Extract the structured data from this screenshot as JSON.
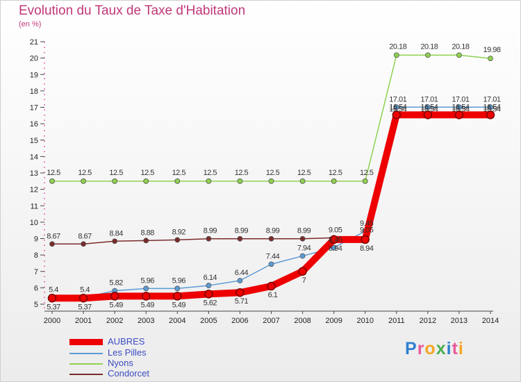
{
  "title": "Evolution du Taux de Taxe d'Habitation",
  "unit": "(en %)",
  "logo": "Proxiti",
  "chart_data": {
    "type": "line",
    "x": [
      "2000",
      "2001",
      "2002",
      "2003",
      "2004",
      "2005",
      "2006",
      "2007",
      "2008",
      "2009",
      "2010",
      "2011",
      "2012",
      "2013",
      "2014"
    ],
    "yticks": [
      "5",
      "6",
      "7",
      "8",
      "9",
      "10",
      "11",
      "12",
      "13",
      "14",
      "15",
      "16",
      "17",
      "18",
      "19",
      "20",
      "21"
    ],
    "ylim": [
      5,
      21
    ],
    "grid": false,
    "legend_position": "bottom-left",
    "series": [
      {
        "name": "AUBRES",
        "color": "#ee0000",
        "values": [
          5.37,
          5.37,
          5.49,
          5.49,
          5.49,
          5.62,
          5.71,
          6.1,
          7,
          8.94,
          8.94,
          16.54,
          16.54,
          16.54,
          16.54
        ],
        "labels": [
          "5.37",
          "5.37",
          "5.49",
          "5.49",
          "5.49",
          "5.62",
          "5.71",
          "6.1",
          "7",
          "8.94",
          "8.94",
          "16.54",
          "16.54",
          "16.54",
          "16.54"
        ]
      },
      {
        "name": "Les Pilles",
        "color": "#5b9bd5",
        "values": [
          5.4,
          5.4,
          5.82,
          5.96,
          5.96,
          6.14,
          6.44,
          7.44,
          7.94,
          8.45,
          9.45,
          17.01,
          17.01,
          17.01,
          17.01
        ],
        "labels": [
          "5.4",
          "5.4",
          "5.82",
          "5.96",
          "5.96",
          "6.14",
          "6.44",
          "7.44",
          "7.94",
          "8.45",
          "9.45",
          "17.01",
          "17.01",
          "17.01",
          "17.01"
        ]
      },
      {
        "name": "Nyons",
        "color": "#8fd14f",
        "values": [
          12.5,
          12.5,
          12.5,
          12.5,
          12.5,
          12.5,
          12.5,
          12.5,
          12.5,
          12.5,
          12.5,
          20.18,
          20.18,
          20.18,
          19.98
        ],
        "labels": [
          "12.5",
          "12.5",
          "12.5",
          "12.5",
          "12.5",
          "12.5",
          "12.5",
          "12.5",
          "12.5",
          "12.5",
          "12.5",
          "20.18",
          "20.18",
          "20.18",
          "19.98"
        ]
      },
      {
        "name": "Condorcet",
        "color": "#7b2a2a",
        "values": [
          8.67,
          8.67,
          8.84,
          8.88,
          8.92,
          8.99,
          8.99,
          8.99,
          8.99,
          9.05,
          9.05,
          16.54,
          16.54,
          16.54,
          16.54
        ],
        "labels": [
          "8.67",
          "8.67",
          "8.84",
          "8.88",
          "8.92",
          "8.99",
          "8.99",
          "8.99",
          "8.99",
          "9.05",
          "9.05",
          "16.54",
          "16.54",
          "16.54",
          "16.54"
        ]
      }
    ]
  }
}
